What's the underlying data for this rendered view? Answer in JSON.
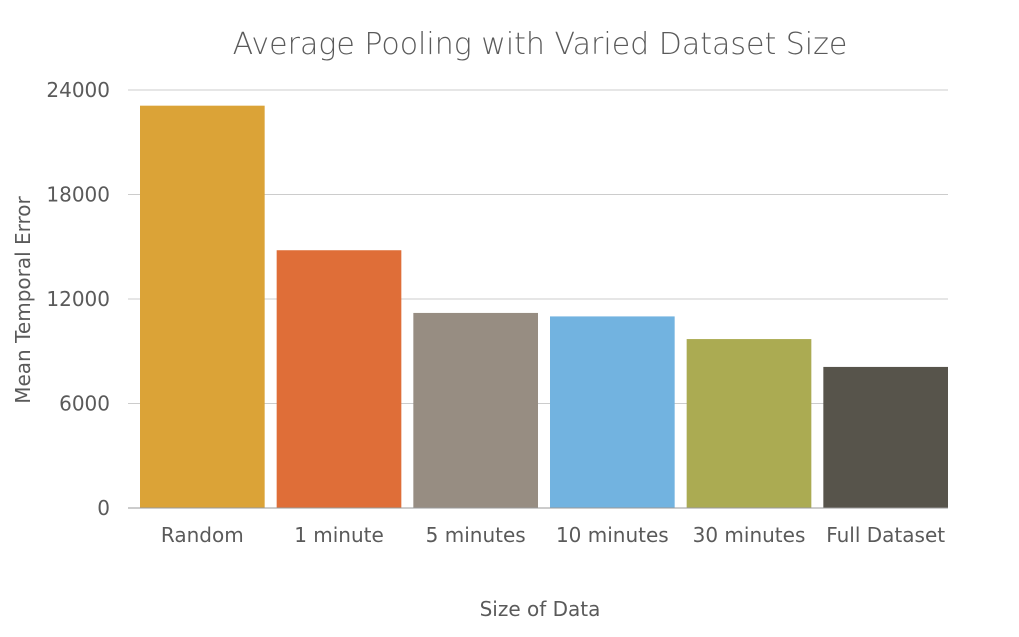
{
  "chart_data": {
    "type": "bar",
    "title": "Average Pooling with Varied Dataset Size",
    "xlabel": "Size of Data",
    "ylabel": "Mean Temporal Error",
    "categories": [
      "Random",
      "1 minute",
      "5 minutes",
      "10 minutes",
      "30 minutes",
      "Full Dataset"
    ],
    "values": [
      23100,
      14800,
      11200,
      11000,
      9700,
      8100
    ],
    "ylim": [
      0,
      24000
    ],
    "yticks": [
      0,
      6000,
      12000,
      18000,
      24000
    ],
    "ytick_labels": [
      "0",
      "6000",
      "12000",
      "18000",
      "24000"
    ],
    "colors": [
      "#DBA337",
      "#DF6E38",
      "#978D82",
      "#72B3E0",
      "#ABAB52",
      "#57544B"
    ],
    "grid": true,
    "legend": "none"
  }
}
